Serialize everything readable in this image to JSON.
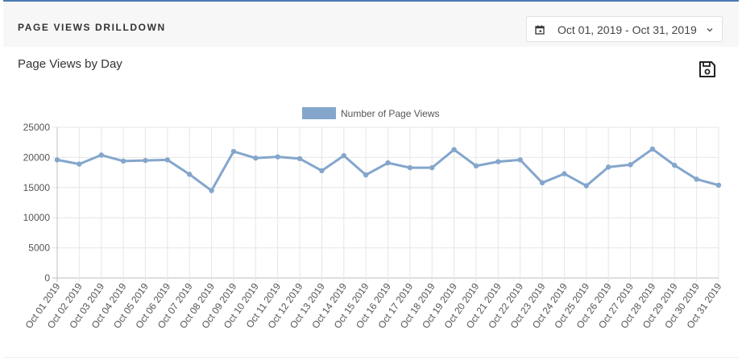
{
  "header": {
    "title": "PAGE VIEWS DRILLDOWN"
  },
  "date_picker": {
    "range": "Oct 01, 2019 - Oct 31, 2019",
    "icon": "calendar-icon",
    "chevron": "chevron-down-icon"
  },
  "card": {
    "title": "Page Views by Day",
    "save_icon": "save-icon"
  },
  "colors": {
    "accent": "#4a7bb5",
    "series": "#84a6cc",
    "grid": "#e6e6e6"
  },
  "chart_data": {
    "type": "line",
    "title": "",
    "xlabel": "",
    "ylabel": "",
    "ylim": [
      0,
      25000
    ],
    "yticks": [
      0,
      5000,
      10000,
      15000,
      20000,
      25000
    ],
    "grid": true,
    "legend": "top-center",
    "categories": [
      "Oct 01 2019",
      "Oct 02 2019",
      "Oct 03 2019",
      "Oct 04 2019",
      "Oct 05 2019",
      "Oct 06 2019",
      "Oct 07 2019",
      "Oct 08 2019",
      "Oct 09 2019",
      "Oct 10 2019",
      "Oct 11 2019",
      "Oct 12 2019",
      "Oct 13 2019",
      "Oct 14 2019",
      "Oct 15 2019",
      "Oct 16 2019",
      "Oct 17 2019",
      "Oct 18 2019",
      "Oct 19 2019",
      "Oct 20 2019",
      "Oct 21 2019",
      "Oct 22 2019",
      "Oct 23 2019",
      "Oct 24 2019",
      "Oct 25 2019",
      "Oct 26 2019",
      "Oct 27 2019",
      "Oct 28 2019",
      "Oct 29 2019",
      "Oct 30 2019",
      "Oct 31 2019"
    ],
    "series": [
      {
        "name": "Number of Page Views",
        "values": [
          19600,
          18900,
          20400,
          19400,
          19500,
          19600,
          17200,
          14500,
          21000,
          19900,
          20100,
          19800,
          17800,
          20300,
          17100,
          19100,
          18300,
          18300,
          21300,
          18600,
          19300,
          19600,
          15800,
          17300,
          15300,
          18400,
          18800,
          21400,
          18700,
          16400,
          15400
        ]
      }
    ]
  }
}
